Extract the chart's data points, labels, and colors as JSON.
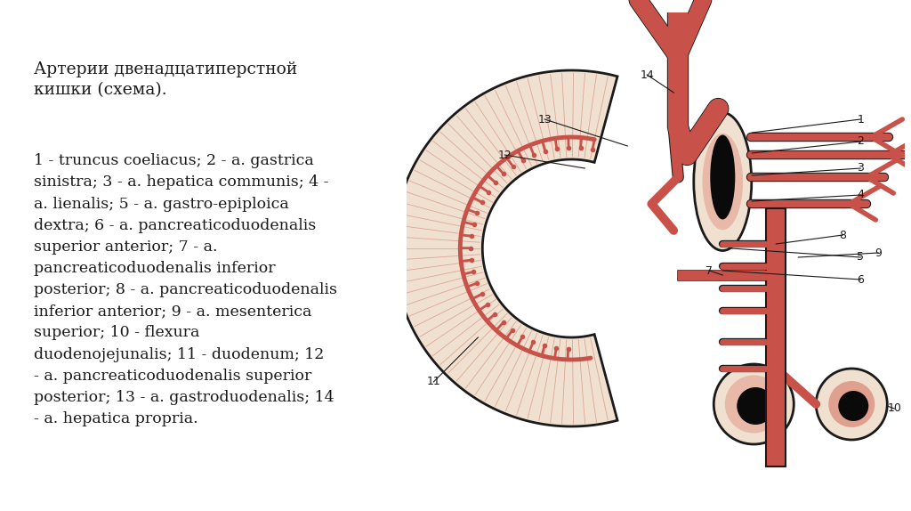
{
  "background_color": "#ffffff",
  "title_text": "Артерии двенадцатиперстной\nкишки (схема).",
  "body_text": "1 - truncus coeliacus; 2 - a. gastrica\nsinistra; 3 - a. hepatica communis; 4 -\na. lienalis; 5 - a. gastro-epiploica\ndextra; 6 - a. pancreaticoduodenalis\nsuperior anterior; 7 - a.\npancreaticoduodenalis inferior\nposterior; 8 - a. pancreaticoduodenalis\ninferior anterior; 9 - a. mesenterica\nsuperior; 10 - flexura\nduodenojejunalis; 11 - duodenum; 12\n- a. pancreaticoduodenalis superior\nposterior; 13 - a. gastroduodenalis; 14\n- a. hepatica propria.",
  "text_color": "#1a1a1a",
  "title_fontsize": 13.5,
  "body_fontsize": 12.5,
  "figsize": [
    10.24,
    5.74
  ],
  "dpi": 100,
  "skin_color": "#f0e0d0",
  "artery_color": "#c8524a",
  "artery_dark": "#a03030",
  "outline_color": "#1a1a1a",
  "black_fill": "#0a0a0a",
  "label_fontsize": 9
}
